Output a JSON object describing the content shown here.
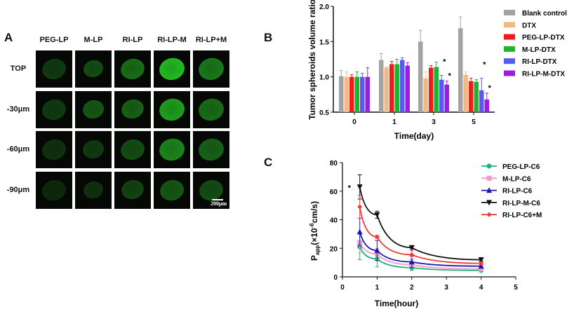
{
  "panelA": {
    "label": "A",
    "columns": [
      "PEG-LP",
      "M-LP",
      "RI-LP",
      "RI-LP-M",
      "RI-LP+M"
    ],
    "rows": [
      "TOP",
      "-30μm",
      "-60μm",
      "-90μm"
    ],
    "scale_bar": "200μm",
    "fluorescence_color": "#2fcf2f"
  },
  "panelB": {
    "label": "B"
  },
  "panelC": {
    "label": "C"
  },
  "chart_data": [
    {
      "type": "bar",
      "ylabel": "Tumor spheroids volume ratio",
      "xlabel": "Time(day)",
      "categories": [
        "0",
        "1",
        "3",
        "5"
      ],
      "ylim": [
        0.5,
        2.0
      ],
      "yticks": [
        "0.5",
        "1.0",
        "1.5",
        "2.0"
      ],
      "legend_position": "right",
      "series": [
        {
          "name": "Blank control",
          "color": "#a3a3a6",
          "values": [
            1.01,
            1.24,
            1.5,
            1.69
          ],
          "errors": [
            0.08,
            0.09,
            0.16,
            0.16
          ]
        },
        {
          "name": "DTX",
          "color": "#f2b985",
          "values": [
            1.0,
            1.13,
            0.98,
            1.03
          ],
          "errors": [
            0.07,
            0.01,
            0.09,
            0.04
          ]
        },
        {
          "name": "PEG-LP-DTX",
          "color": "#ee1c1c",
          "values": [
            1.0,
            1.18,
            1.13,
            0.94
          ],
          "errors": [
            0.03,
            0.04,
            0.03,
            0.04
          ]
        },
        {
          "name": "M-LP-DTX",
          "color": "#1db52b",
          "values": [
            1.0,
            1.18,
            1.14,
            0.93
          ],
          "errors": [
            0.07,
            0.07,
            0.07,
            0.03
          ]
        },
        {
          "name": "RI-LP-DTX",
          "color": "#5a5af0",
          "values": [
            1.0,
            1.24,
            0.96,
            0.81
          ],
          "errors": [
            0.05,
            0.03,
            0.06,
            0.17
          ]
        },
        {
          "name": "RI-LP-M-DTX",
          "color": "#9b1ee0",
          "values": [
            1.0,
            1.16,
            0.89,
            0.68
          ],
          "errors": [
            0.13,
            0.04,
            0.05,
            0.09
          ]
        }
      ],
      "annotations": [
        {
          "text": "*",
          "category": "3",
          "series": "RI-LP-DTX"
        },
        {
          "text": "*",
          "category": "3",
          "series": "RI-LP-M-DTX"
        },
        {
          "text": "*",
          "category": "5",
          "series": "RI-LP-DTX"
        },
        {
          "text": "*",
          "category": "5",
          "series": "RI-LP-M-DTX"
        }
      ]
    },
    {
      "type": "line",
      "ylabel_main": "P",
      "ylabel_sub": "app",
      "ylabel_rest": "(×10",
      "ylabel_sup": "-6",
      "ylabel_unit": "cm/s)",
      "xlabel": "Time(hour)",
      "xlim": [
        0,
        5
      ],
      "ylim": [
        0,
        80
      ],
      "xticks": [
        "0",
        "1",
        "2",
        "3",
        "4",
        "5"
      ],
      "yticks": [
        "0",
        "20",
        "40",
        "60",
        "80"
      ],
      "x": [
        0.5,
        1,
        2,
        4
      ],
      "legend_position": "top-right",
      "series": [
        {
          "name": "PEG-LP-C6",
          "color": "#1fb27a",
          "marker": "circle",
          "values": [
            21,
            12.5,
            6.5,
            4.5
          ],
          "errors": [
            9,
            5.5,
            2,
            1
          ]
        },
        {
          "name": "M-LP-C6",
          "color": "#f29ac8",
          "marker": "square",
          "values": [
            24,
            16,
            8.5,
            5.5
          ],
          "errors": [
            7,
            4,
            2,
            1
          ]
        },
        {
          "name": "RI-LP-C6",
          "color": "#1a1ab0",
          "marker": "triangle-up",
          "values": [
            31.5,
            18.5,
            10.5,
            7.5
          ],
          "errors": [
            9.5,
            7,
            4,
            1
          ]
        },
        {
          "name": "RI-LP-M-C6",
          "color": "#111111",
          "marker": "triangle-down",
          "values": [
            63,
            43.5,
            20.5,
            12
          ],
          "errors": [
            8.5,
            2.5,
            1,
            1
          ]
        },
        {
          "name": "RI-LP-C6+M",
          "color": "#ee3b3b",
          "marker": "diamond",
          "values": [
            49,
            28,
            15.5,
            9.5
          ],
          "errors": [
            8,
            1,
            3,
            1
          ]
        }
      ],
      "annotations": [
        {
          "text": "*",
          "x": 0.2,
          "y": 63
        }
      ]
    }
  ]
}
